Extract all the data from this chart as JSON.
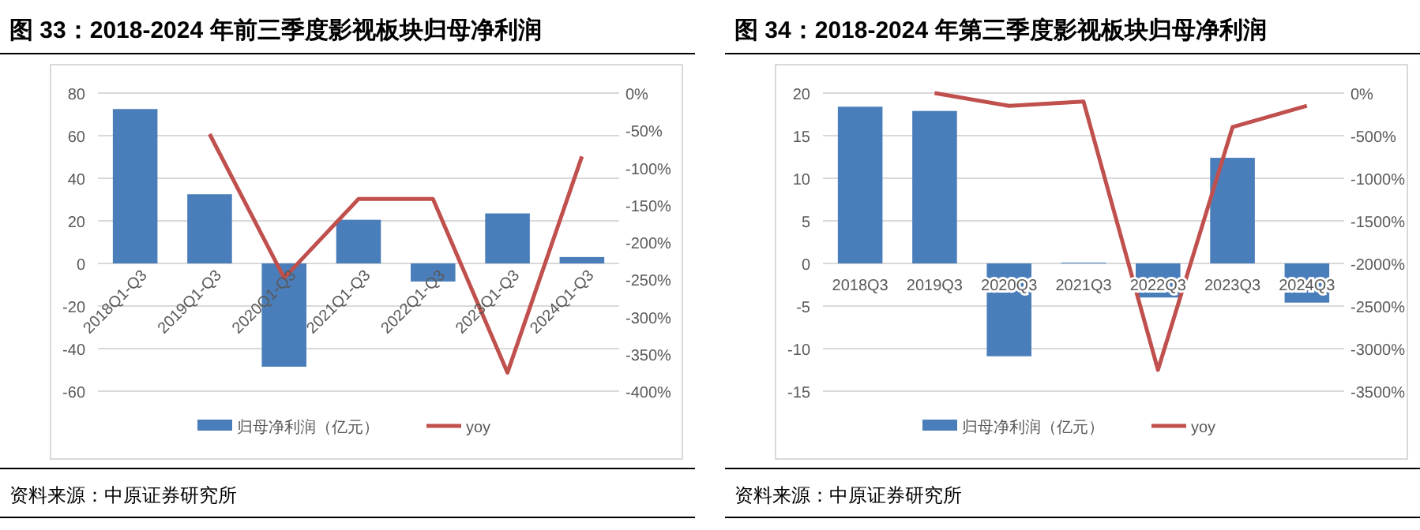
{
  "chart_data": [
    {
      "type": "bar",
      "title": "图 33：2018-2024 年前三季度影视板块归母净利润",
      "categories": [
        "2018Q1-Q3",
        "2019Q1-Q3",
        "2020Q1-Q3",
        "2021Q1-Q3",
        "2022Q1-Q3",
        "2023Q1-Q3",
        "2024Q1-Q3"
      ],
      "series": [
        {
          "name": "归母净利润（亿元）",
          "color": "#4a7ebb",
          "values": [
            72.5,
            32.5,
            -48.5,
            20.5,
            -8.5,
            23.5,
            3
          ]
        },
        {
          "name": "yoy",
          "type": "line",
          "axis": "y2",
          "color": "#c0504d",
          "values": [
            null,
            -55,
            -248,
            -142,
            -142,
            -375,
            -85
          ]
        }
      ],
      "ylim": [
        -60,
        80
      ],
      "yticks": [
        -60,
        -40,
        -20,
        0,
        20,
        40,
        60,
        80
      ],
      "y2lim": [
        -400,
        0
      ],
      "y2ticks": [
        {
          "value": -400,
          "label": "-400%"
        },
        {
          "value": -350,
          "label": "-350%"
        },
        {
          "value": -300,
          "label": "-300%"
        },
        {
          "value": -250,
          "label": "-250%"
        },
        {
          "value": -200,
          "label": "-200%"
        },
        {
          "value": -150,
          "label": "-150%"
        },
        {
          "value": -100,
          "label": "-100%"
        },
        {
          "value": -50,
          "label": "-50%"
        },
        {
          "value": 0,
          "label": "0%"
        }
      ],
      "grid": "y",
      "legend": "bottom",
      "annotations": [
        "资料来源：中原证券研究所"
      ]
    },
    {
      "type": "bar",
      "title": "图 34：2018-2024 年第三季度影视板块归母净利润",
      "categories": [
        "2018Q3",
        "2019Q3",
        "2020Q3",
        "2021Q3",
        "2022Q3",
        "2023Q3",
        "2024Q3"
      ],
      "series": [
        {
          "name": "归母净利润（亿元）",
          "color": "#4a7ebb",
          "values": [
            18.4,
            17.9,
            -10.9,
            0.1,
            -4,
            12.4,
            -4.6
          ]
        },
        {
          "name": "yoy",
          "type": "line",
          "axis": "y2",
          "color": "#c0504d",
          "values": [
            null,
            0,
            -150,
            -100,
            -3250,
            -400,
            -150
          ]
        }
      ],
      "ylim": [
        -15,
        20
      ],
      "yticks": [
        -15,
        -10,
        -5,
        0,
        5,
        10,
        15,
        20
      ],
      "y2lim": [
        -3500,
        0
      ],
      "y2ticks": [
        {
          "value": -3500,
          "label": "-3500%"
        },
        {
          "value": -3000,
          "label": "-3000%"
        },
        {
          "value": -2500,
          "label": "-2500%"
        },
        {
          "value": -2000,
          "label": "-2000%"
        },
        {
          "value": -1500,
          "label": "-1500%"
        },
        {
          "value": -1000,
          "label": "-1000%"
        },
        {
          "value": -500,
          "label": "-500%"
        },
        {
          "value": 0,
          "label": "0%"
        }
      ],
      "grid": "y",
      "legend": "bottom",
      "annotations": [
        "资料来源：中原证券研究所"
      ]
    }
  ]
}
